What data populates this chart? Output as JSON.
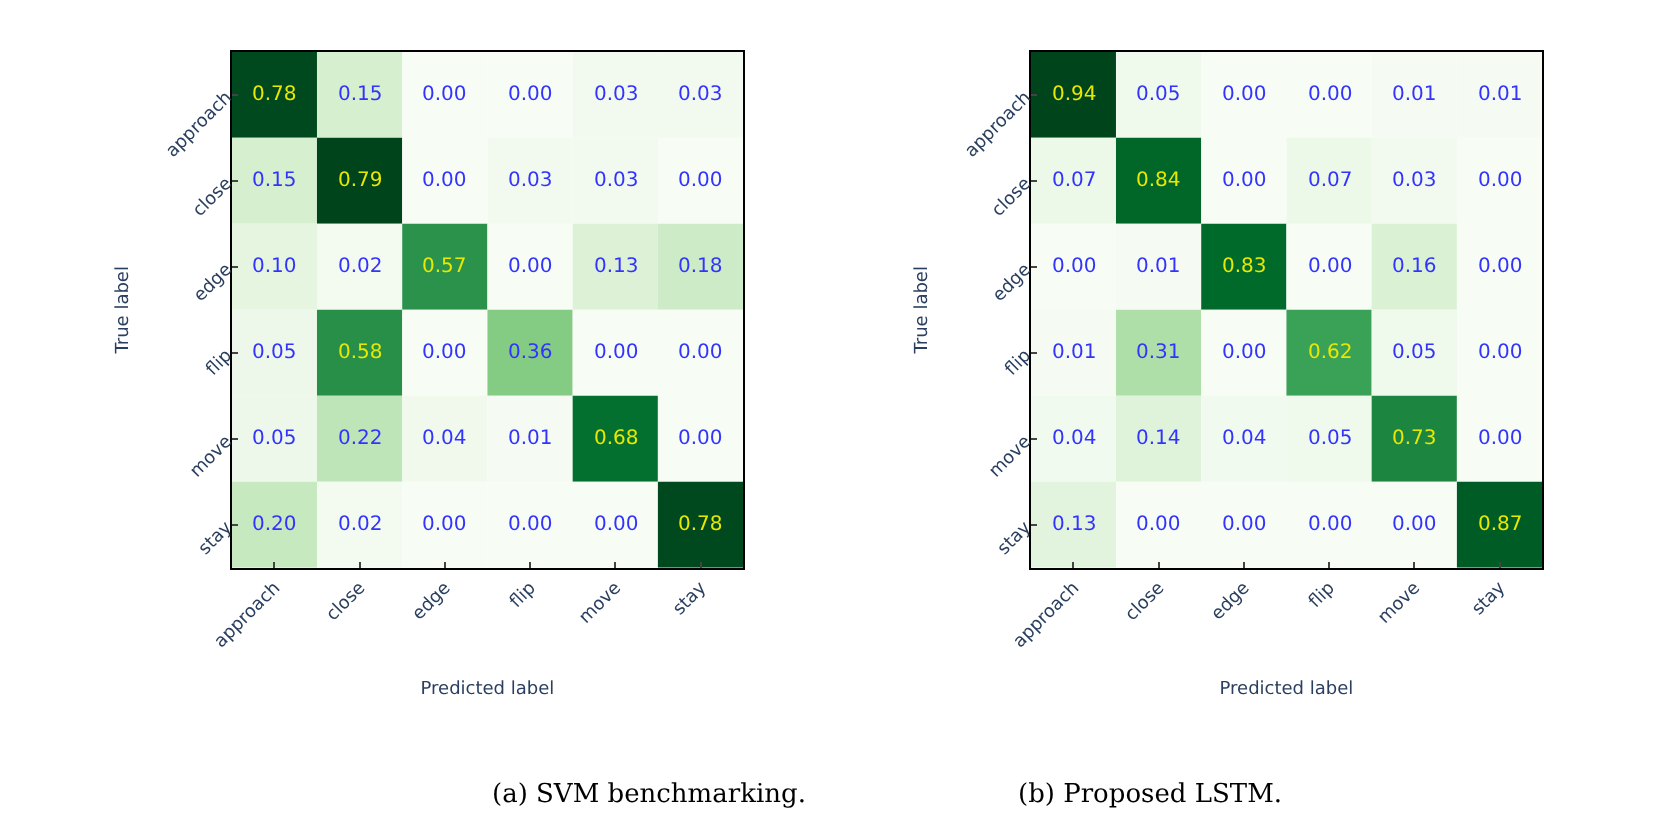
{
  "chart_data": [
    {
      "type": "heatmap",
      "xlabel": "Predicted label",
      "ylabel": "True label",
      "annotations": [
        "(a) SVM benchmarking."
      ],
      "categories": [
        "approach",
        "close",
        "edge",
        "flip",
        "move",
        "stay"
      ],
      "y_categories": [
        "approach",
        "close",
        "edge",
        "flip",
        "move",
        "stay"
      ],
      "cells": [
        [
          0.78,
          0.15,
          0.0,
          0.0,
          0.03,
          0.03
        ],
        [
          0.15,
          0.79,
          0.0,
          0.03,
          0.03,
          0.0
        ],
        [
          0.1,
          0.02,
          0.57,
          0.0,
          0.13,
          0.18
        ],
        [
          0.05,
          0.58,
          0.0,
          0.36,
          0.0,
          0.0
        ],
        [
          0.05,
          0.22,
          0.04,
          0.01,
          0.68,
          0.0
        ],
        [
          0.2,
          0.02,
          0.0,
          0.0,
          0.0,
          0.78
        ]
      ],
      "cell_labels": [
        [
          "0.78",
          "0.15",
          "0.00",
          "0.00",
          "0.03",
          "0.03"
        ],
        [
          "0.15",
          "0.79",
          "0.00",
          "0.03",
          "0.03",
          "0.00"
        ],
        [
          "0.10",
          "0.02",
          "0.57",
          "0.00",
          "0.13",
          "0.18"
        ],
        [
          "0.05",
          "0.58",
          "0.00",
          "0.36",
          "0.00",
          "0.00"
        ],
        [
          "0.05",
          "0.22",
          "0.04",
          "0.01",
          "0.68",
          "0.00"
        ],
        [
          "0.20",
          "0.02",
          "0.00",
          "0.00",
          "0.00",
          "0.78"
        ]
      ]
    },
    {
      "type": "heatmap",
      "xlabel": "Predicted label",
      "ylabel": "True label",
      "annotations": [
        "(b) Proposed LSTM."
      ],
      "categories": [
        "approach",
        "close",
        "edge",
        "flip",
        "move",
        "stay"
      ],
      "y_categories": [
        "approach",
        "close",
        "edge",
        "flip",
        "move",
        "stay"
      ],
      "cells": [
        [
          0.94,
          0.05,
          0.0,
          0.0,
          0.01,
          0.01
        ],
        [
          0.07,
          0.84,
          0.0,
          0.07,
          0.03,
          0.0
        ],
        [
          0.0,
          0.01,
          0.83,
          0.0,
          0.16,
          0.0
        ],
        [
          0.01,
          0.31,
          0.0,
          0.62,
          0.05,
          0.0
        ],
        [
          0.04,
          0.14,
          0.04,
          0.05,
          0.73,
          0.0
        ],
        [
          0.13,
          0.0,
          0.0,
          0.0,
          0.0,
          0.87
        ]
      ],
      "cell_labels": [
        [
          "0.94",
          "0.05",
          "0.00",
          "0.00",
          "0.01",
          "0.01"
        ],
        [
          "0.07",
          "0.84",
          "0.00",
          "0.07",
          "0.03",
          "0.00"
        ],
        [
          "0.00",
          "0.01",
          "0.83",
          "0.00",
          "0.16",
          "0.00"
        ],
        [
          "0.01",
          "0.31",
          "0.00",
          "0.62",
          "0.05",
          "0.00"
        ],
        [
          "0.04",
          "0.14",
          "0.04",
          "0.05",
          "0.73",
          "0.00"
        ],
        [
          "0.13",
          "0.00",
          "0.00",
          "0.00",
          "0.00",
          "0.87"
        ]
      ]
    }
  ]
}
